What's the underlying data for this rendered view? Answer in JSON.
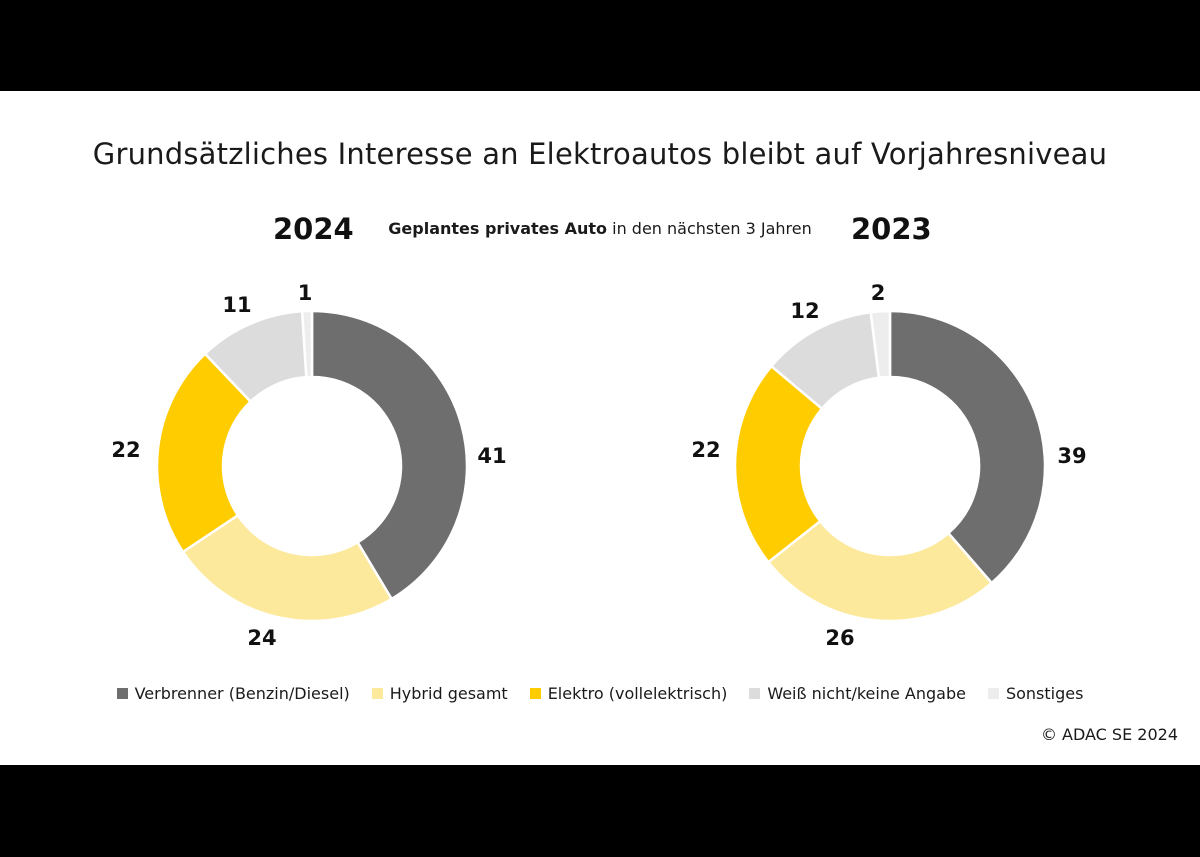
{
  "title": "Grundsätzliches Interesse an Elektroautos bleibt auf Vorjahresniveau",
  "subtitle": {
    "bold": "Geplantes privates Auto",
    "rest": " in den nächsten 3 Jahren"
  },
  "copyright": "© ADAC SE 2024",
  "colors": {
    "verbrenner": "#6e6e6e",
    "hybrid": "#fde99b",
    "elektro": "#ffcc00",
    "weissnicht": "#dcdcdc",
    "sonstiges": "#ededed"
  },
  "legend": [
    {
      "label": "Verbrenner (Benzin/Diesel)",
      "color": "#6e6e6e"
    },
    {
      "label": "Hybrid gesamt",
      "color": "#fde99b"
    },
    {
      "label": "Elektro (vollelektrisch)",
      "color": "#ffcc00"
    },
    {
      "label": "Weiß nicht/keine Angabe",
      "color": "#dcdcdc"
    },
    {
      "label": "Sonstiges",
      "color": "#ededed"
    }
  ],
  "chart_data": [
    {
      "type": "pie",
      "title": "2024",
      "categories": [
        "Verbrenner (Benzin/Diesel)",
        "Hybrid gesamt",
        "Elektro (vollelektrisch)",
        "Weiß nicht/keine Angabe",
        "Sonstiges"
      ],
      "values": [
        41,
        24,
        22,
        11,
        1
      ]
    },
    {
      "type": "pie",
      "title": "2023",
      "categories": [
        "Verbrenner (Benzin/Diesel)",
        "Hybrid gesamt",
        "Elektro (vollelektrisch)",
        "Weiß nicht/keine Angabe",
        "Sonstiges"
      ],
      "values": [
        39,
        26,
        22,
        12,
        2
      ]
    }
  ]
}
